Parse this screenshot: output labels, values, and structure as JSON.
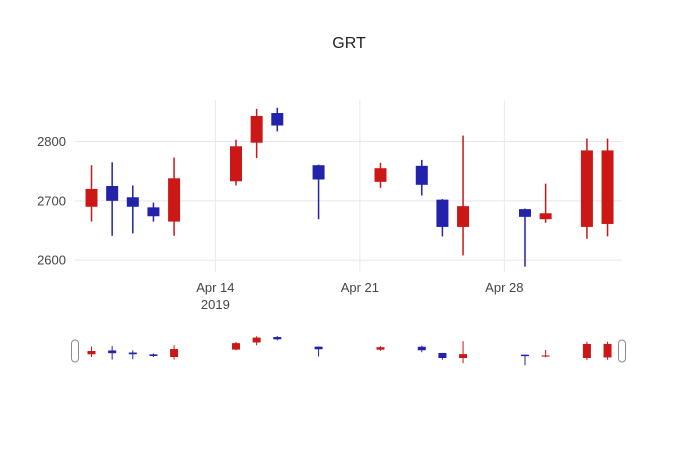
{
  "chart_data": {
    "type": "candlestick",
    "title": "GRT",
    "x_axis": {
      "ticks": [
        {
          "label": "Apr 14",
          "sublabel": "2019",
          "day": 6
        },
        {
          "label": "Apr 21",
          "sublabel": "",
          "day": 13
        },
        {
          "label": "Apr 28",
          "sublabel": "",
          "day": 20
        }
      ],
      "range_days": [
        -0.8,
        25.7
      ],
      "grid": true
    },
    "y_axis": {
      "ticks": [
        2600,
        2700,
        2800
      ],
      "range": [
        2580,
        2870
      ],
      "grid": true
    },
    "series": [
      {
        "date": "2019-04-08",
        "day": 0,
        "open": 2720,
        "high": 2760,
        "low": 2665,
        "close": 2690
      },
      {
        "date": "2019-04-09",
        "day": 1,
        "open": 2700,
        "high": 2765,
        "low": 2641,
        "close": 2725
      },
      {
        "date": "2019-04-10",
        "day": 2,
        "open": 2690,
        "high": 2726,
        "low": 2645,
        "close": 2706
      },
      {
        "date": "2019-04-11",
        "day": 3,
        "open": 2674,
        "high": 2697,
        "low": 2665,
        "close": 2689
      },
      {
        "date": "2019-04-12",
        "day": 4,
        "open": 2738,
        "high": 2773,
        "low": 2641,
        "close": 2665
      },
      {
        "date": "2019-04-15",
        "day": 7,
        "open": 2792,
        "high": 2803,
        "low": 2726,
        "close": 2733
      },
      {
        "date": "2019-04-16",
        "day": 8,
        "open": 2843,
        "high": 2855,
        "low": 2772,
        "close": 2798
      },
      {
        "date": "2019-04-17",
        "day": 9,
        "open": 2827,
        "high": 2857,
        "low": 2817,
        "close": 2848
      },
      {
        "date": "2019-04-19",
        "day": 11,
        "open": 2736,
        "high": 2761,
        "low": 2669,
        "close": 2760
      },
      {
        "date": "2019-04-22",
        "day": 14,
        "open": 2755,
        "high": 2764,
        "low": 2722,
        "close": 2732
      },
      {
        "date": "2019-04-24",
        "day": 16,
        "open": 2727,
        "high": 2769,
        "low": 2709,
        "close": 2759
      },
      {
        "date": "2019-04-25",
        "day": 17,
        "open": 2656,
        "high": 2703,
        "low": 2640,
        "close": 2702
      },
      {
        "date": "2019-04-26",
        "day": 18,
        "open": 2691,
        "high": 2810,
        "low": 2608,
        "close": 2656
      },
      {
        "date": "2019-04-29",
        "day": 21,
        "open": 2673,
        "high": 2687,
        "low": 2589,
        "close": 2686
      },
      {
        "date": "2019-04-30",
        "day": 22,
        "open": 2679,
        "high": 2729,
        "low": 2663,
        "close": 2669
      },
      {
        "date": "2019-05-02",
        "day": 24,
        "open": 2785,
        "high": 2805,
        "low": 2636,
        "close": 2656
      },
      {
        "date": "2019-05-03",
        "day": 25,
        "open": 2785,
        "high": 2805,
        "low": 2640,
        "close": 2661
      }
    ],
    "rangeslider": {
      "visible": true,
      "range": [
        2555,
        2885
      ]
    },
    "legend": "none",
    "colors": {
      "increasing": "#2222aa",
      "decreasing": "#cc1717",
      "grid": "#e8e8e8",
      "tick_text": "#444444",
      "title_text": "#1f1f1f",
      "slider_handle_border": "#8c8c8c",
      "background": "#ffffff"
    }
  }
}
